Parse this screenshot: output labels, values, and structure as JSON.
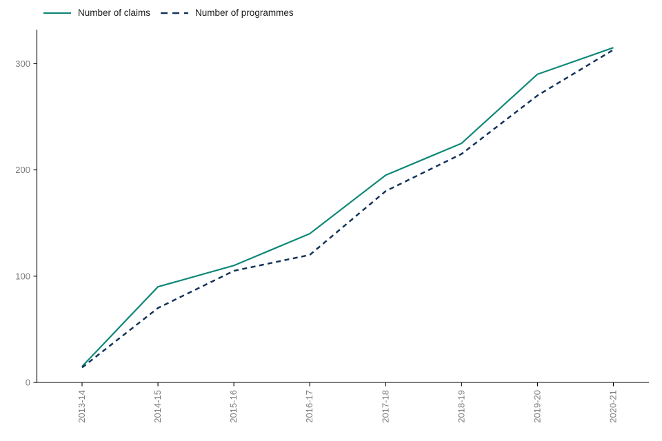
{
  "chart_data": {
    "type": "line",
    "title": "",
    "xlabel": "",
    "ylabel": "",
    "categories": [
      "2013-14",
      "2014-15",
      "2015-16",
      "2016-17",
      "2017-18",
      "2018-19",
      "2019-20",
      "2020-21"
    ],
    "series": [
      {
        "name": "Number of claims",
        "line_style": "solid",
        "color": "#0f8878",
        "values": [
          15,
          90,
          110,
          140,
          195,
          225,
          290,
          315
        ]
      },
      {
        "name": "Number of programmes",
        "line_style": "dashed",
        "color": "#13335a",
        "values": [
          14,
          70,
          105,
          120,
          180,
          215,
          270,
          313
        ]
      }
    ],
    "yticks": [
      0,
      100,
      200,
      300
    ],
    "ylim": [
      0,
      335
    ],
    "grid": "off",
    "legend_position": "top-left",
    "axis_text_color": "#7d7d7d",
    "axis_line_color": "#000000",
    "background_color": "#ffffff"
  }
}
